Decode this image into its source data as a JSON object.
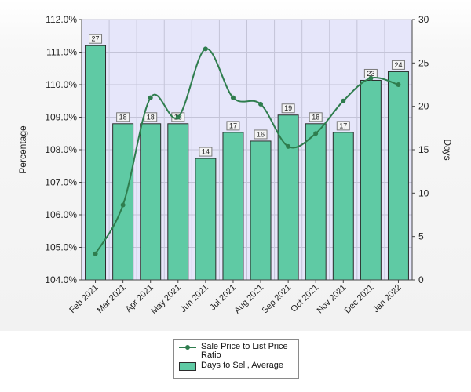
{
  "chart_data": {
    "type": "bar",
    "categories": [
      "Feb 2021",
      "Mar 2021",
      "Apr 2021",
      "May 2021",
      "Jun 2021",
      "Jul 2021",
      "Aug 2021",
      "Sep 2021",
      "Oct 2021",
      "Nov 2021",
      "Dec 2021",
      "Jan 2022"
    ],
    "series": [
      {
        "name": "Days to Sell, Average",
        "type": "bar",
        "axis": "right",
        "values": [
          27,
          18,
          18,
          18,
          14,
          17,
          16,
          19,
          18,
          17,
          23,
          24
        ],
        "color": "#5fcaa4"
      },
      {
        "name": "Sale Price to List Price Ratio",
        "type": "line",
        "axis": "left",
        "values": [
          104.8,
          106.3,
          109.6,
          109.0,
          111.1,
          109.6,
          109.4,
          108.1,
          108.5,
          109.5,
          110.2,
          110.0
        ],
        "color": "#2f7d4e"
      }
    ],
    "ylabel": "Percentage",
    "y2label": "Days",
    "ylim": [
      104.0,
      112.0
    ],
    "y2lim": [
      0,
      30
    ],
    "yticks": [
      "104.0%",
      "105.0%",
      "106.0%",
      "107.0%",
      "108.0%",
      "109.0%",
      "110.0%",
      "111.0%",
      "112.0%"
    ],
    "y2ticks": [
      "0",
      "5",
      "10",
      "15",
      "20",
      "25",
      "30"
    ],
    "grid": true,
    "legend_position": "bottom"
  },
  "legend": {
    "line_label": "Sale Price to List Price Ratio",
    "bar_label": "Days to Sell, Average"
  }
}
